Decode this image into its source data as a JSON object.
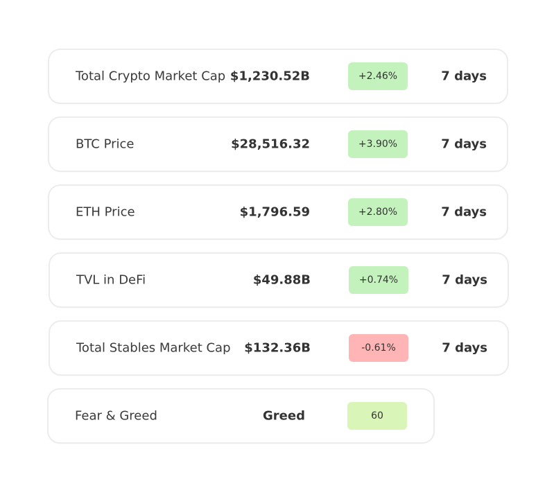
{
  "metrics": [
    {
      "label": "Total Crypto Market Cap",
      "value": "$1,230.52B",
      "change": "+2.46%",
      "change_type": "positive",
      "period": "7 days"
    },
    {
      "label": "BTC Price",
      "value": "$28,516.32",
      "change": "+3.90%",
      "change_type": "positive",
      "period": "7 days"
    },
    {
      "label": "ETH Price",
      "value": "$1,796.59",
      "change": "+2.80%",
      "change_type": "positive",
      "period": "7 days"
    },
    {
      "label": "TVL in DeFi",
      "value": "$49.88B",
      "change": "+0.74%",
      "change_type": "positive",
      "period": "7 days"
    },
    {
      "label": "Total Stables Market Cap",
      "value": "$132.36B",
      "change": "-0.61%",
      "change_type": "negative",
      "period": "7 days"
    }
  ],
  "fear_greed": {
    "label": "Fear & Greed",
    "status": "Greed",
    "score": "60"
  },
  "colors": {
    "positive_badge": "#c4f2bd",
    "negative_badge": "#ffb5b5",
    "neutral_badge": "#d9f5b8",
    "card_border": "#ececec",
    "text": "#333333"
  }
}
